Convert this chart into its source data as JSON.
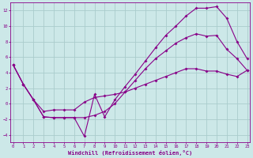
{
  "xlabel": "Windchill (Refroidissement éolien,°C)",
  "bg_color": "#cce8e8",
  "line_color": "#880088",
  "grid_color": "#aacccc",
  "xlim": [
    -0.3,
    23.3
  ],
  "ylim": [
    -5.0,
    13.0
  ],
  "xticks": [
    0,
    1,
    2,
    3,
    4,
    5,
    6,
    7,
    8,
    9,
    10,
    11,
    12,
    13,
    14,
    15,
    16,
    17,
    18,
    19,
    20,
    21,
    22,
    23
  ],
  "yticks": [
    -4,
    -2,
    0,
    2,
    4,
    6,
    8,
    10,
    12
  ],
  "line1_x": [
    0,
    1,
    2,
    3,
    4,
    5,
    6,
    7,
    8,
    9,
    10,
    11,
    12,
    13,
    14,
    15,
    16,
    17,
    18,
    19,
    20,
    21,
    22,
    23
  ],
  "line1_y": [
    5.0,
    2.5,
    0.5,
    -1.7,
    -1.8,
    -1.8,
    -1.8,
    -4.2,
    1.2,
    -1.7,
    0.5,
    2.2,
    3.8,
    5.5,
    7.2,
    8.8,
    10.0,
    11.3,
    12.3,
    12.3,
    12.5,
    11.0,
    8.0,
    5.8
  ],
  "line2_x": [
    0,
    1,
    2,
    3,
    4,
    5,
    6,
    7,
    8,
    9,
    10,
    11,
    12,
    13,
    14,
    15,
    16,
    17,
    18,
    19,
    20,
    21,
    22,
    23
  ],
  "line2_y": [
    5.0,
    2.5,
    0.5,
    -1.7,
    -1.8,
    -1.8,
    -1.8,
    -1.8,
    -1.5,
    -1.0,
    0.0,
    1.5,
    3.0,
    4.5,
    5.8,
    6.8,
    7.8,
    8.5,
    9.0,
    8.7,
    8.8,
    7.0,
    5.8,
    4.3
  ],
  "line3_x": [
    0,
    1,
    2,
    3,
    4,
    5,
    6,
    7,
    8,
    9,
    10,
    11,
    12,
    13,
    14,
    15,
    16,
    17,
    18,
    19,
    20,
    21,
    22,
    23
  ],
  "line3_y": [
    5.0,
    2.5,
    0.5,
    -1.0,
    -0.8,
    -0.8,
    -0.8,
    0.2,
    0.8,
    1.0,
    1.2,
    1.5,
    2.0,
    2.5,
    3.0,
    3.5,
    4.0,
    4.5,
    4.5,
    4.2,
    4.2,
    3.8,
    3.5,
    4.3
  ]
}
